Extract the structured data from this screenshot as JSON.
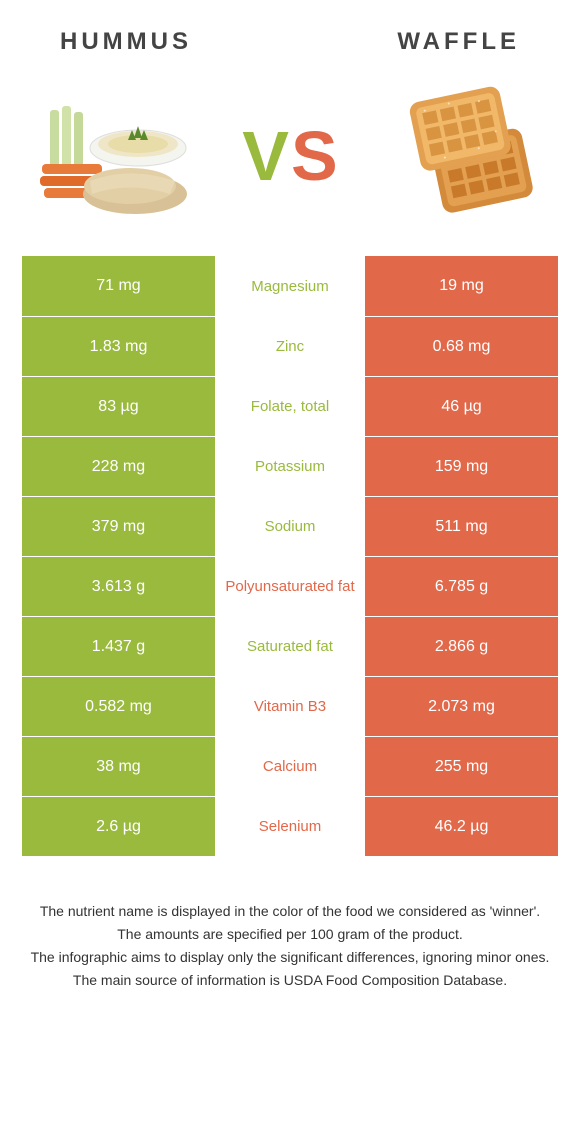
{
  "colors": {
    "left_food": "#9aba3e",
    "right_food": "#e2684a",
    "background": "#ffffff",
    "text_dark": "#444444",
    "footnote": "#333333"
  },
  "header": {
    "left_title": "Hummus",
    "right_title": "Waffle"
  },
  "vs": {
    "v": "V",
    "s": "S"
  },
  "table": {
    "left_bg": "#9aba3e",
    "right_bg": "#e2684a",
    "rows": [
      {
        "left": "71 mg",
        "name": "Magnesium",
        "right": "19 mg",
        "winner": "left"
      },
      {
        "left": "1.83 mg",
        "name": "Zinc",
        "right": "0.68 mg",
        "winner": "left"
      },
      {
        "left": "83 µg",
        "name": "Folate, total",
        "right": "46 µg",
        "winner": "left"
      },
      {
        "left": "228 mg",
        "name": "Potassium",
        "right": "159 mg",
        "winner": "left"
      },
      {
        "left": "379 mg",
        "name": "Sodium",
        "right": "511 mg",
        "winner": "left"
      },
      {
        "left": "3.613 g",
        "name": "Polyunsaturated fat",
        "right": "6.785 g",
        "winner": "right"
      },
      {
        "left": "1.437 g",
        "name": "Saturated fat",
        "right": "2.866 g",
        "winner": "left"
      },
      {
        "left": "0.582 mg",
        "name": "Vitamin B3",
        "right": "2.073 mg",
        "winner": "right"
      },
      {
        "left": "38 mg",
        "name": "Calcium",
        "right": "255 mg",
        "winner": "right"
      },
      {
        "left": "2.6 µg",
        "name": "Selenium",
        "right": "46.2 µg",
        "winner": "right"
      }
    ]
  },
  "footnotes": [
    "The nutrient name is displayed in the color of the food we considered as 'winner'.",
    "The amounts are specified per 100 gram of the product.",
    "The infographic aims to display only the significant differences, ignoring minor ones.",
    "The main source of information is USDA Food Composition Database."
  ]
}
